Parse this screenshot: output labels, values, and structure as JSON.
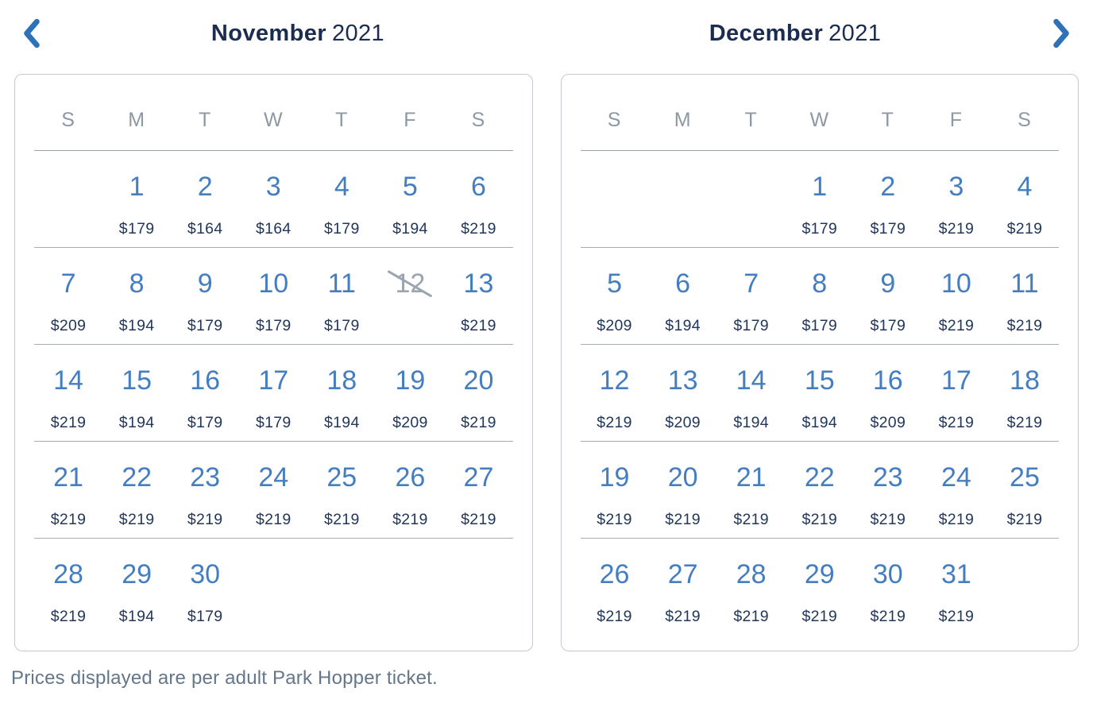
{
  "colors": {
    "accent_blue": "#2d71b8",
    "date_blue": "#447ec0",
    "price_navy": "#22375a",
    "title_navy": "#1b2c4e",
    "muted_gray": "#8d98a4",
    "disabled_gray": "#9aa5b0"
  },
  "nav": {
    "prev_label": "previous month",
    "next_label": "next month"
  },
  "months": [
    {
      "title_month": "November",
      "title_year": "2021",
      "day_headers": [
        "S",
        "M",
        "T",
        "W",
        "T",
        "F",
        "S"
      ],
      "weeks": [
        [
          {},
          {
            "d": "1",
            "p": "$179"
          },
          {
            "d": "2",
            "p": "$164"
          },
          {
            "d": "3",
            "p": "$164"
          },
          {
            "d": "4",
            "p": "$179"
          },
          {
            "d": "5",
            "p": "$194"
          },
          {
            "d": "6",
            "p": "$219"
          }
        ],
        [
          {
            "d": "7",
            "p": "$209"
          },
          {
            "d": "8",
            "p": "$194"
          },
          {
            "d": "9",
            "p": "$179"
          },
          {
            "d": "10",
            "p": "$179"
          },
          {
            "d": "11",
            "p": "$179"
          },
          {
            "d": "12",
            "disabled": true
          },
          {
            "d": "13",
            "p": "$219"
          }
        ],
        [
          {
            "d": "14",
            "p": "$219"
          },
          {
            "d": "15",
            "p": "$194"
          },
          {
            "d": "16",
            "p": "$179"
          },
          {
            "d": "17",
            "p": "$179"
          },
          {
            "d": "18",
            "p": "$194"
          },
          {
            "d": "19",
            "p": "$209"
          },
          {
            "d": "20",
            "p": "$219"
          }
        ],
        [
          {
            "d": "21",
            "p": "$219"
          },
          {
            "d": "22",
            "p": "$219"
          },
          {
            "d": "23",
            "p": "$219"
          },
          {
            "d": "24",
            "p": "$219"
          },
          {
            "d": "25",
            "p": "$219"
          },
          {
            "d": "26",
            "p": "$219"
          },
          {
            "d": "27",
            "p": "$219"
          }
        ],
        [
          {
            "d": "28",
            "p": "$219"
          },
          {
            "d": "29",
            "p": "$194"
          },
          {
            "d": "30",
            "p": "$179"
          },
          {},
          {},
          {},
          {}
        ]
      ]
    },
    {
      "title_month": "December",
      "title_year": "2021",
      "day_headers": [
        "S",
        "M",
        "T",
        "W",
        "T",
        "F",
        "S"
      ],
      "weeks": [
        [
          {},
          {},
          {},
          {
            "d": "1",
            "p": "$179"
          },
          {
            "d": "2",
            "p": "$179"
          },
          {
            "d": "3",
            "p": "$219"
          },
          {
            "d": "4",
            "p": "$219"
          }
        ],
        [
          {
            "d": "5",
            "p": "$209"
          },
          {
            "d": "6",
            "p": "$194"
          },
          {
            "d": "7",
            "p": "$179"
          },
          {
            "d": "8",
            "p": "$179"
          },
          {
            "d": "9",
            "p": "$179"
          },
          {
            "d": "10",
            "p": "$219"
          },
          {
            "d": "11",
            "p": "$219"
          }
        ],
        [
          {
            "d": "12",
            "p": "$219"
          },
          {
            "d": "13",
            "p": "$209"
          },
          {
            "d": "14",
            "p": "$194"
          },
          {
            "d": "15",
            "p": "$194"
          },
          {
            "d": "16",
            "p": "$209"
          },
          {
            "d": "17",
            "p": "$219"
          },
          {
            "d": "18",
            "p": "$219"
          }
        ],
        [
          {
            "d": "19",
            "p": "$219"
          },
          {
            "d": "20",
            "p": "$219"
          },
          {
            "d": "21",
            "p": "$219"
          },
          {
            "d": "22",
            "p": "$219"
          },
          {
            "d": "23",
            "p": "$219"
          },
          {
            "d": "24",
            "p": "$219"
          },
          {
            "d": "25",
            "p": "$219"
          }
        ],
        [
          {
            "d": "26",
            "p": "$219"
          },
          {
            "d": "27",
            "p": "$219"
          },
          {
            "d": "28",
            "p": "$219"
          },
          {
            "d": "29",
            "p": "$219"
          },
          {
            "d": "30",
            "p": "$219"
          },
          {
            "d": "31",
            "p": "$219"
          },
          {}
        ]
      ]
    }
  ],
  "footer": {
    "note": "Prices displayed are per adult Park Hopper ticket."
  }
}
